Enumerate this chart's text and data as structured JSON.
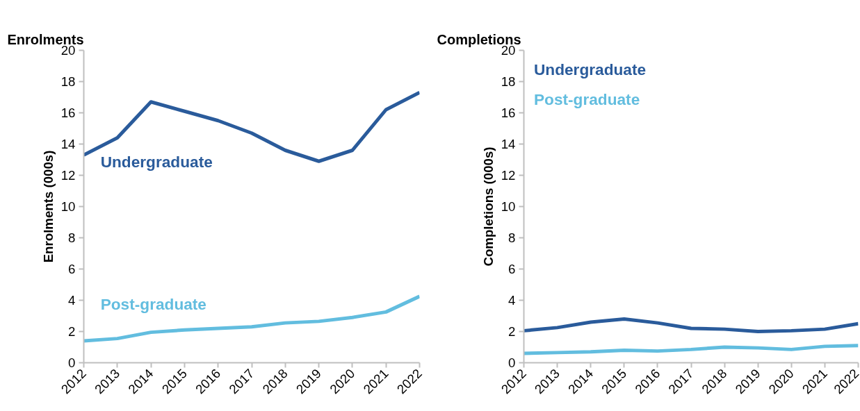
{
  "chart_data": [
    {
      "type": "line",
      "title": "Enrolments",
      "ylabel": "Enrolments (000s)",
      "categories": [
        "2012",
        "2013",
        "2014",
        "2015",
        "2016",
        "2017",
        "2018",
        "2019",
        "2020",
        "2021",
        "2022"
      ],
      "series": [
        {
          "name": "Undergraduate",
          "color": "#2a5b9b",
          "values": [
            13.3,
            14.4,
            16.7,
            16.1,
            15.5,
            14.7,
            13.6,
            12.9,
            13.6,
            16.2,
            17.3
          ]
        },
        {
          "name": "Post-graduate",
          "color": "#62bddf",
          "values": [
            1.4,
            1.55,
            1.95,
            2.1,
            2.2,
            2.3,
            2.55,
            2.65,
            2.9,
            3.25,
            4.25
          ]
        }
      ],
      "ylim": [
        0,
        20
      ],
      "yticks": [
        0,
        2,
        4,
        6,
        8,
        10,
        12,
        14,
        16,
        18,
        20
      ],
      "grid": false,
      "marker": "none",
      "line_style": "solid"
    },
    {
      "type": "line",
      "title": "Completions",
      "ylabel": "Completions (000s)",
      "categories": [
        "2012",
        "2013",
        "2014",
        "2015",
        "2016",
        "2017",
        "2018",
        "2019",
        "2020",
        "2021",
        "2022"
      ],
      "series": [
        {
          "name": "Undergraduate",
          "color": "#2a5b9b",
          "values": [
            2.05,
            2.25,
            2.6,
            2.8,
            2.55,
            2.2,
            2.15,
            2.0,
            2.05,
            2.15,
            2.5
          ]
        },
        {
          "name": "Post-graduate",
          "color": "#62bddf",
          "values": [
            0.6,
            0.65,
            0.7,
            0.8,
            0.75,
            0.85,
            1.0,
            0.95,
            0.85,
            1.05,
            1.1
          ]
        }
      ],
      "ylim": [
        0,
        20
      ],
      "yticks": [
        0,
        2,
        4,
        6,
        8,
        10,
        12,
        14,
        16,
        18,
        20
      ],
      "grid": false,
      "marker": "none",
      "line_style": "solid"
    }
  ]
}
